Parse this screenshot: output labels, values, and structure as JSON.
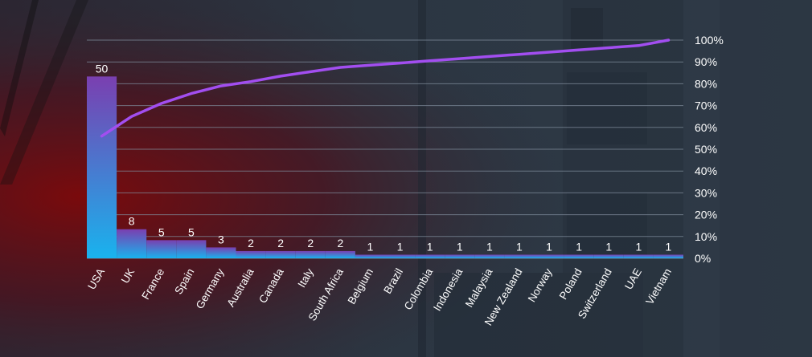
{
  "chart_data": {
    "type": "bar",
    "categories": [
      "USA",
      "UK",
      "France",
      "Spain",
      "Germany",
      "Australia",
      "Canada",
      "Italy",
      "South Africa",
      "Belgium",
      "Brazil",
      "Colombia",
      "Indonesia",
      "Malaysia",
      "New Zealand",
      "Norway",
      "Poland",
      "Switzerland",
      "UAE",
      "Vietnam"
    ],
    "series": [
      {
        "values": [
          50,
          8,
          5,
          5,
          3,
          2,
          2,
          2,
          2,
          1,
          1,
          1,
          1,
          1,
          1,
          1,
          1,
          1,
          1,
          1
        ]
      },
      {
        "values": [
          56,
          65,
          71,
          75.5,
          79,
          81,
          83.5,
          85.5,
          87.5,
          88.5,
          89.5,
          90.5,
          91.5,
          92.5,
          93.5,
          94.5,
          95.5,
          96.5,
          97.5,
          100
        ],
        "axis": "secondary",
        "type": "line"
      }
    ],
    "y2ticks": [
      "0%",
      "10%",
      "20%",
      "30%",
      "40%",
      "50%",
      "60%",
      "70%",
      "80%",
      "90%",
      "100%"
    ],
    "y2lim": [
      0,
      100
    ],
    "ylim": [
      0,
      60
    ],
    "grid": true,
    "title": "",
    "xlabel": "",
    "ylabel": ""
  },
  "colors": {
    "bar_top": "#7a3fb0",
    "bar_bottom": "#19b3ee",
    "line": "#a24ef0",
    "grid": "#7f8c9b",
    "text": "#ffffff"
  }
}
